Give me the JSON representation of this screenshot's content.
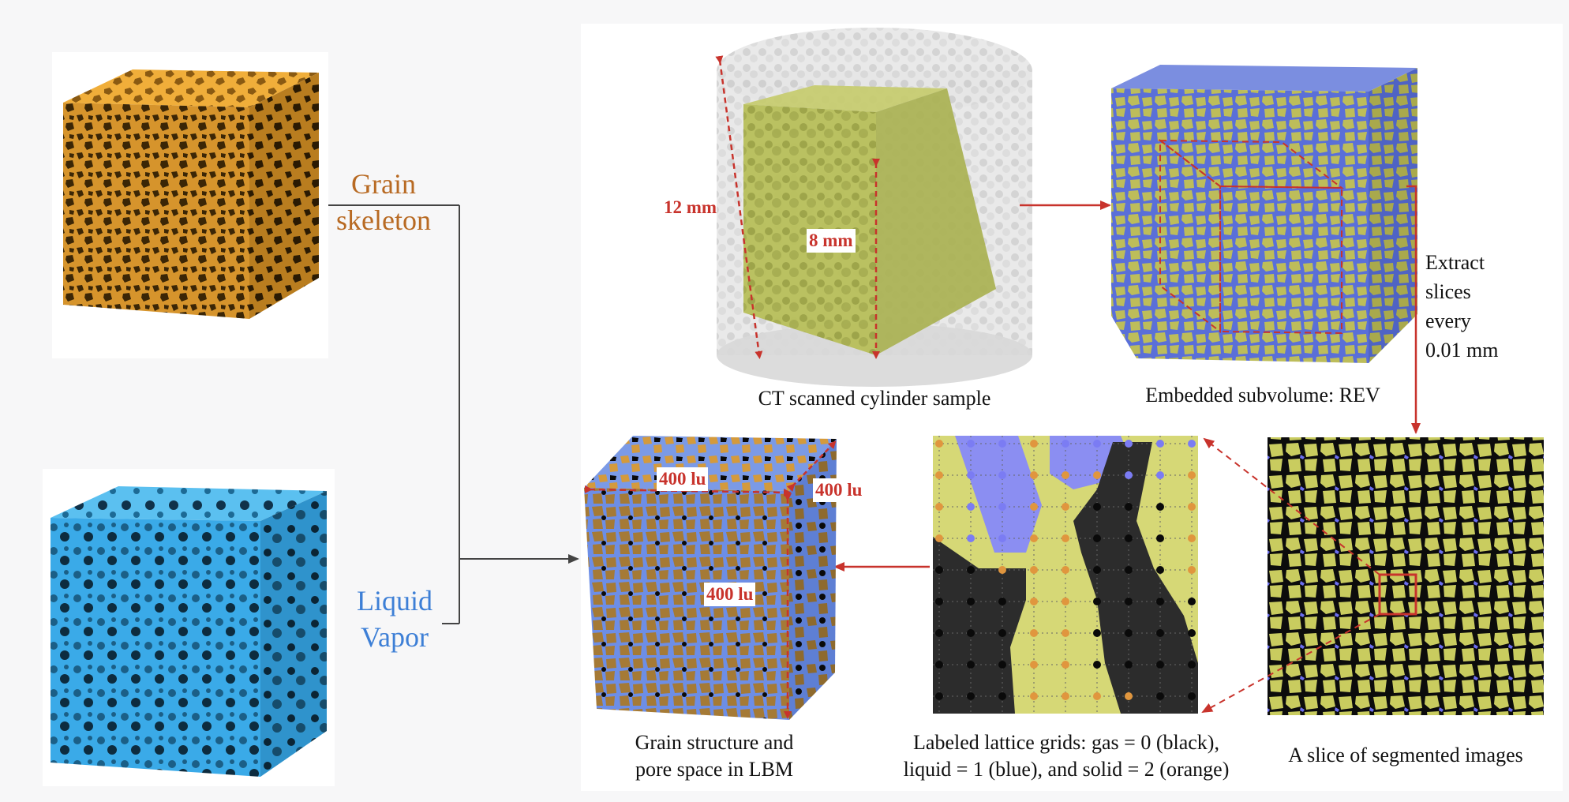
{
  "left": {
    "grain_label": [
      "Grain",
      "skeleton"
    ],
    "liquid_label": [
      "Liquid",
      "Vapor"
    ]
  },
  "top": {
    "ct_dim_outer": "12 mm",
    "ct_dim_inner": "8 mm",
    "ct_caption": "CT scanned cylinder sample",
    "rev_caption": "Embedded subvolume: REV",
    "extract_text": [
      "Extract",
      "slices",
      "every",
      "0.01 mm"
    ]
  },
  "bottom": {
    "lbm_dim_top": "400 lu",
    "lbm_dim_side": "400 lu",
    "lbm_dim_front": "400 lu",
    "lbm_caption": [
      "Grain structure and",
      "pore space in LBM"
    ],
    "lattice_caption": [
      "Labeled lattice grids: gas = 0 (black),",
      "liquid = 1 (blue), and solid = 2 (orange)"
    ],
    "slice_caption": "A slice of segmented images"
  },
  "colors": {
    "grain": "#e1a03a",
    "grain_label": "#b86a23",
    "liquid": "#36a7e6",
    "liquid_label": "#3d7fd6",
    "arrow": "#c8332c",
    "solid_yellow": "#cfce6a",
    "pore_blue": "#7b7cf3",
    "gas_black": "#141414"
  }
}
